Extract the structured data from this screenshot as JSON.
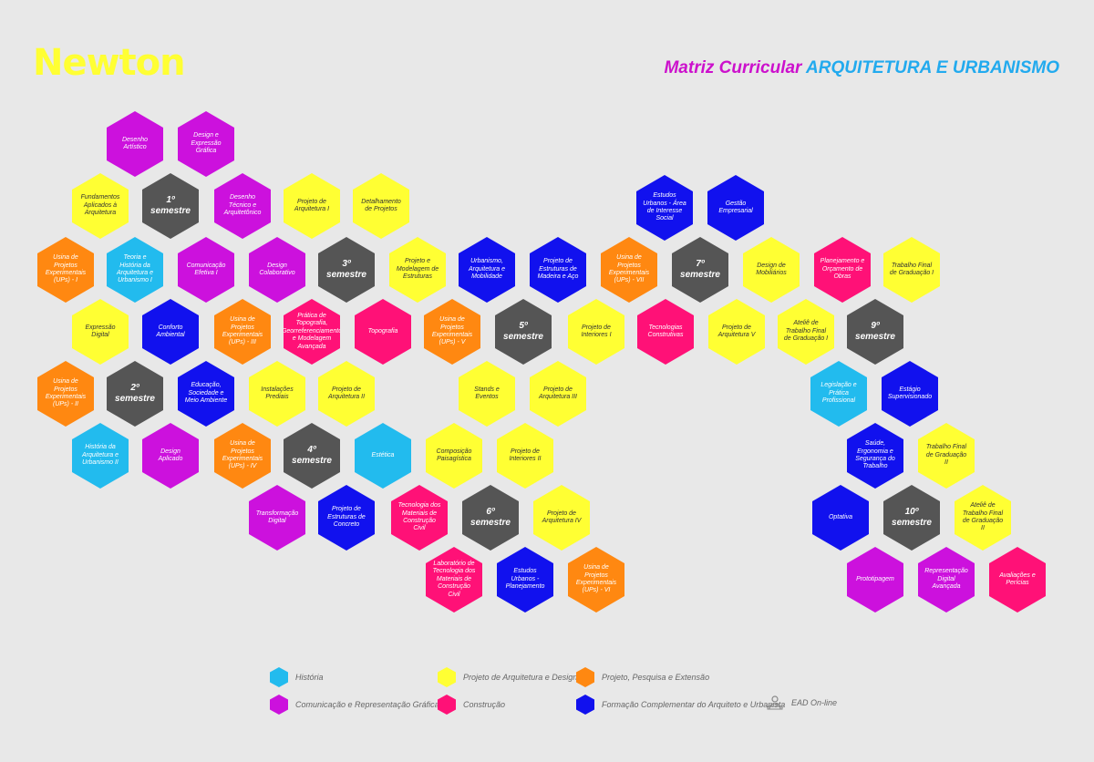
{
  "header": {
    "logo": "Newton",
    "title_prefix": "Matriz Curricular",
    "title_main": "ARQUITETURA E URBANISMO"
  },
  "colors": {
    "historia": "#22bbee",
    "projeto_design": "#ffff33",
    "projeto_pesquisa": "#ff8811",
    "comunicacao": "#cc11dd",
    "construcao": "#ff1177",
    "formacao": "#1111ee",
    "semester": "#555555"
  },
  "hexes": [
    {
      "t": "Desenho Artístico",
      "c": "pur"
    },
    {
      "t": "Design e Expressão Gráfica",
      "c": "pur"
    },
    {
      "t": "Fundamentos Aplicados à Arquitetura",
      "c": "yel"
    },
    {
      "t": "1º semestre",
      "c": "gry"
    },
    {
      "t": "Desenho Técnico e Arquitetônico",
      "c": "pur"
    },
    {
      "t": "Projeto de Arquitetura I",
      "c": "yel"
    },
    {
      "t": "Detalhamento de Projetos",
      "c": "yel"
    },
    {
      "t": "Usina de Projetos Experimentais (UPs) - I",
      "c": "org"
    },
    {
      "t": "Teoria e História da Arquitetura e Urbanismo I",
      "c": "cyn"
    },
    {
      "t": "Comunicação Efetiva I",
      "c": "pur"
    },
    {
      "t": "Design Colaborativo",
      "c": "pur"
    },
    {
      "t": "3º semestre",
      "c": "gry"
    },
    {
      "t": "Projeto e Modelagem de Estruturas",
      "c": "yel"
    },
    {
      "t": "Urbanismo, Arquitetura e Mobilidade",
      "c": "blu"
    },
    {
      "t": "Projeto de Estruturas de Madeira e Aço",
      "c": "blu"
    },
    {
      "t": "Expressão Digital",
      "c": "yel"
    },
    {
      "t": "Conforto Ambiental",
      "c": "blu"
    },
    {
      "t": "Usina de Projetos Experimentais (UPs) - III",
      "c": "org"
    },
    {
      "t": "Prática de Topografia, Georreferenciamento e Modelagem Avançada",
      "c": "pnk"
    },
    {
      "t": "Topografia",
      "c": "pnk"
    },
    {
      "t": "Usina de Projetos Experimentais (UPs) - V",
      "c": "org"
    },
    {
      "t": "5º semestre",
      "c": "gry"
    },
    {
      "t": "Usina de Projetos Experimentais (UPs) - II",
      "c": "org"
    },
    {
      "t": "2º semestre",
      "c": "gry"
    },
    {
      "t": "Educação, Sociedade e Meio Ambiente",
      "c": "blu"
    },
    {
      "t": "Instalações Prediais",
      "c": "yel"
    },
    {
      "t": "Projeto de Arquitetura II",
      "c": "yel"
    },
    {
      "t": "Stands e Eventos",
      "c": "yel"
    },
    {
      "t": "Projeto de Arquitetura III",
      "c": "yel"
    },
    {
      "t": "História da Arquitetura e Urbanismo II",
      "c": "cyn"
    },
    {
      "t": "Design Aplicado",
      "c": "pur"
    },
    {
      "t": "Usina de Projetos Experimentais (UPs) - IV",
      "c": "org"
    },
    {
      "t": "4º semestre",
      "c": "gry"
    },
    {
      "t": "Estética",
      "c": "cyn"
    },
    {
      "t": "Composição Paisagística",
      "c": "yel"
    },
    {
      "t": "Projeto de Interiores II",
      "c": "yel"
    },
    {
      "t": "Transformação Digital",
      "c": "pur"
    },
    {
      "t": "Projeto de Estruturas de Concreto",
      "c": "blu"
    },
    {
      "t": "Tecnologia dos Materiais de Construção Civil",
      "c": "pnk"
    },
    {
      "t": "6º semestre",
      "c": "gry"
    },
    {
      "t": "Projeto de Arquitetura IV",
      "c": "yel"
    },
    {
      "t": "Laboratório de Tecnologia dos Materiais de Construção Civil",
      "c": "pnk"
    },
    {
      "t": "Estudos Urbanos - Planejamento",
      "c": "blu"
    },
    {
      "t": "Usina de Projetos Experimentais (UPs) - VI",
      "c": "org"
    },
    {
      "t": "Projeto de Interiores I",
      "c": "yel"
    },
    {
      "t": "Estudos Urbanos - Área de Interesse Social",
      "c": "blu"
    },
    {
      "t": "Gestão Empresarial",
      "c": "blu"
    },
    {
      "t": "Usina de Projetos Experimentais (UPs) - VII",
      "c": "org"
    },
    {
      "t": "7º semestre",
      "c": "gry"
    },
    {
      "t": "Design de Mobiliários",
      "c": "yel"
    },
    {
      "t": "Planejamento e Orçamento de Obras",
      "c": "pnk"
    },
    {
      "t": "Trabalho Final de Graduação I",
      "c": "yel"
    },
    {
      "t": "Tecnologias Construtivas",
      "c": "pnk"
    },
    {
      "t": "Projeto de Arquitetura V",
      "c": "yel"
    },
    {
      "t": "Ateliê de Trabalho Final de Graduação I",
      "c": "yel"
    },
    {
      "t": "9º semestre",
      "c": "gry"
    },
    {
      "t": "Legislação e Prática Profissional",
      "c": "cyn"
    },
    {
      "t": "Estágio Supervisionado",
      "c": "blu"
    },
    {
      "t": "Saúde, Ergonomia e Segurança do Trabalho",
      "c": "blu"
    },
    {
      "t": "Trabalho Final de Graduação II",
      "c": "yel"
    },
    {
      "t": "Optativa",
      "c": "blu"
    },
    {
      "t": "10º semestre",
      "c": "gry"
    },
    {
      "t": "Ateliê de Trabalho Final de Graduação II",
      "c": "yel"
    },
    {
      "t": "Prototipagem",
      "c": "pur"
    },
    {
      "t": "Representação Digital Avançada",
      "c": "pur"
    },
    {
      "t": "Avaliações e Perícias",
      "c": "pnk"
    }
  ],
  "legend": [
    {
      "label": "História",
      "c": "cyn"
    },
    {
      "label": "Projeto de Arquitetura e Design",
      "c": "yel"
    },
    {
      "label": "Projeto, Pesquisa e Extensão",
      "c": "org"
    },
    {
      "label": "Comunicação e Representação Gráfica",
      "c": "pur"
    },
    {
      "label": "Construção",
      "c": "pnk"
    },
    {
      "label": "Formação Complementar do Arquiteto e Urbanista",
      "c": "blu"
    },
    {
      "label": "EAD On-line",
      "icon": "ead-person-icon"
    }
  ]
}
